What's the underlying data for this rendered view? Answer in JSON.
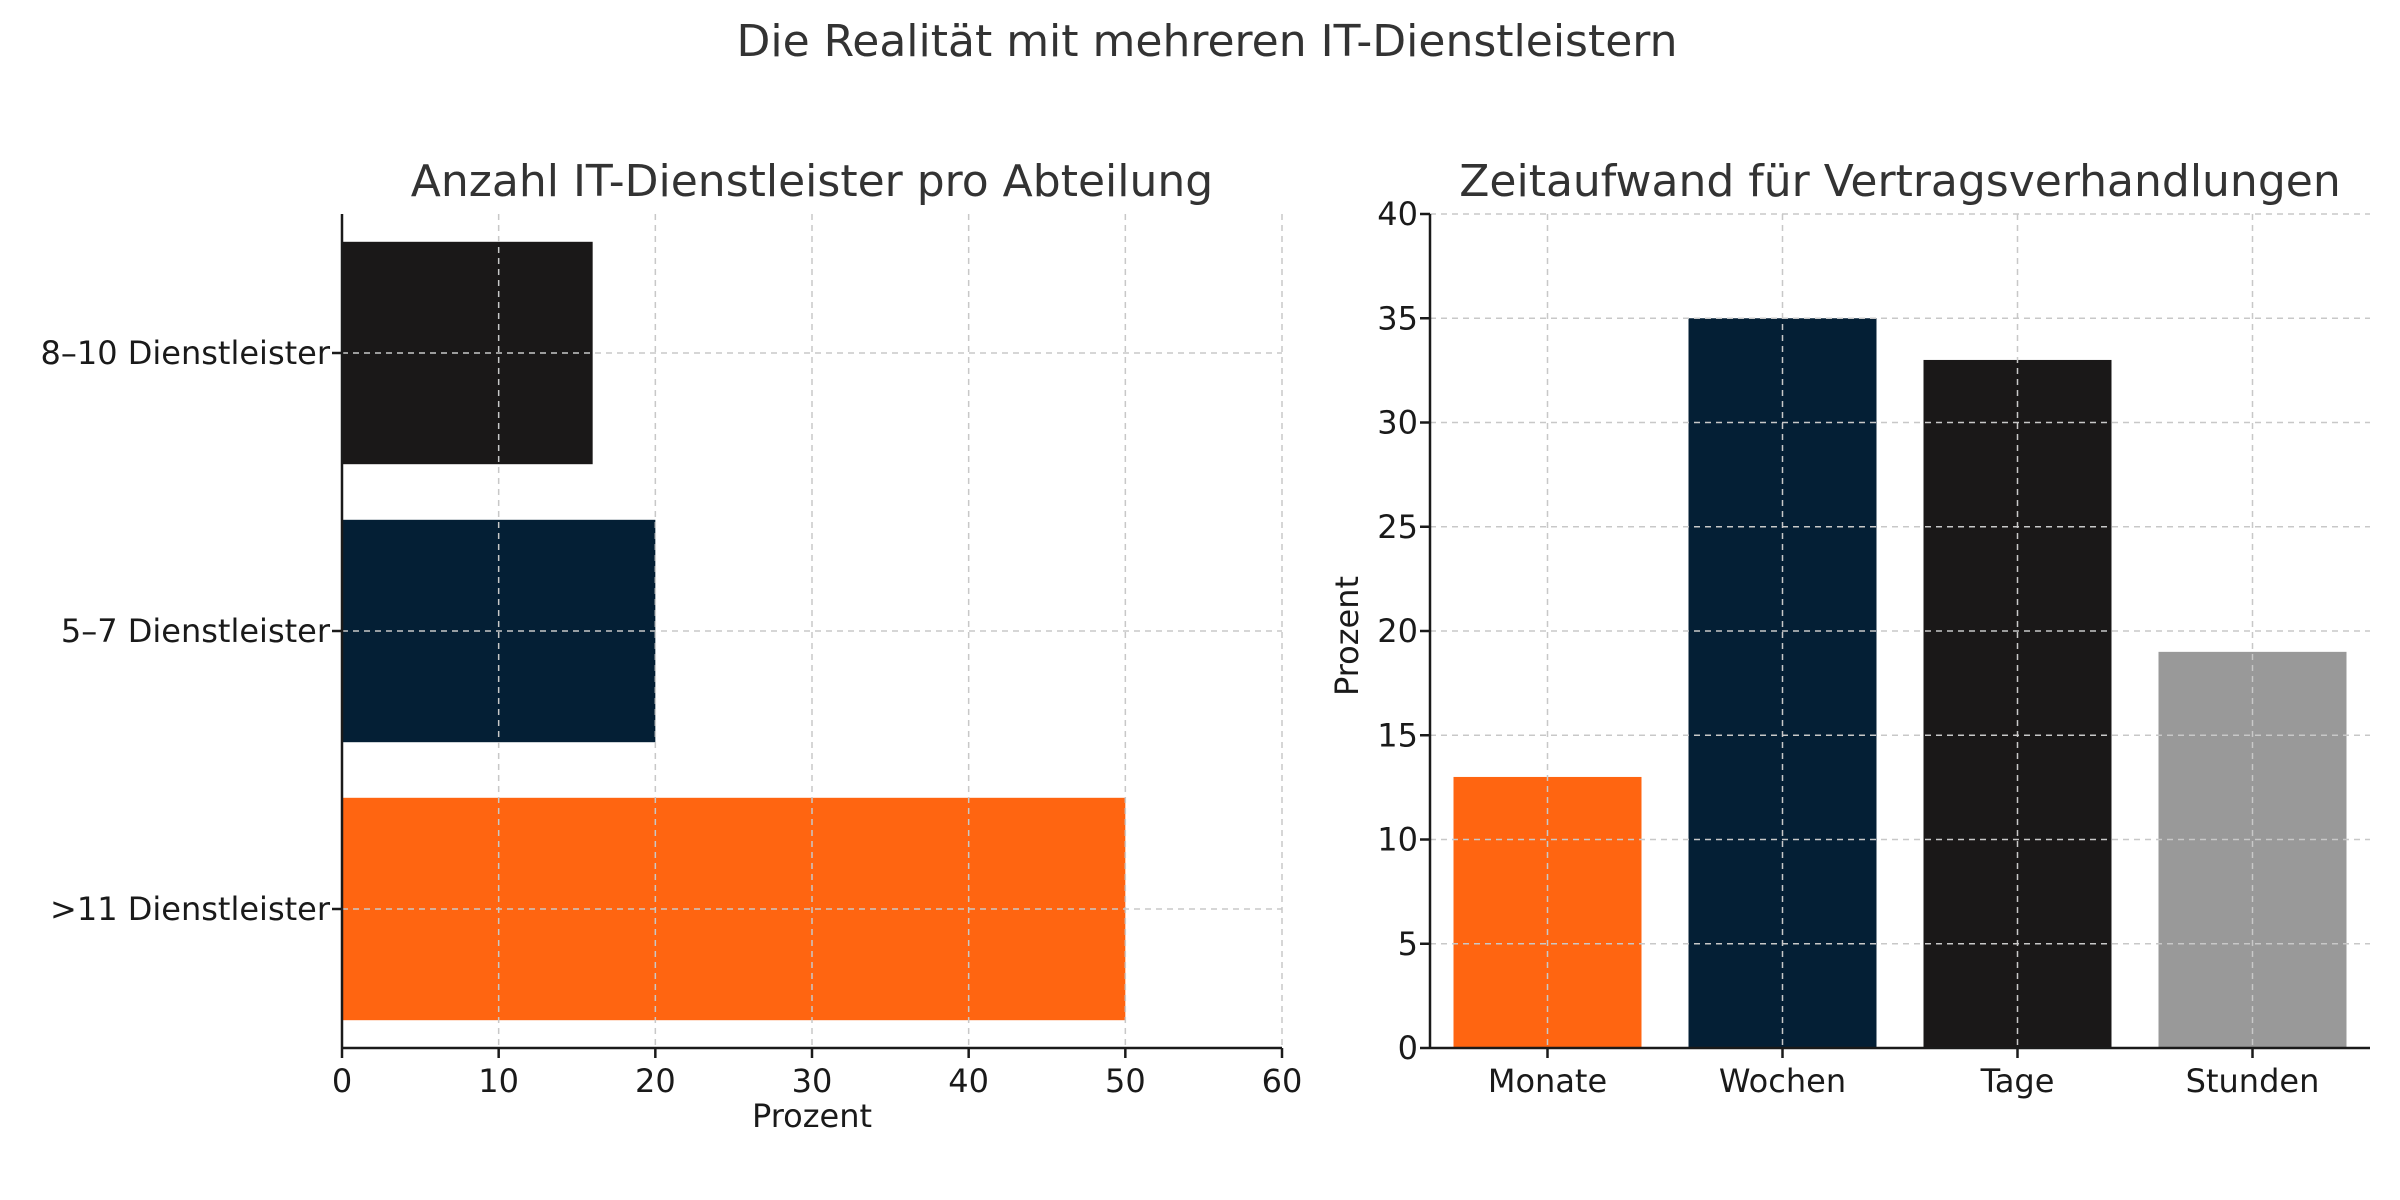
{
  "figure": {
    "suptitle": "Die Realität mit mehreren IT-Dienstleistern"
  },
  "chart_data": [
    {
      "type": "bar",
      "orientation": "horizontal",
      "title": "Anzahl IT-Dienstleister pro Abteilung",
      "xlabel": "Prozent",
      "ylabel": "",
      "categories": [
        "8–10 Dienstleister",
        "5–7 Dienstleister",
        ">11 Dienstleister"
      ],
      "values": [
        16,
        20,
        50
      ],
      "colors": [
        "#1a1818",
        "#041f35",
        "#ff6511"
      ],
      "xlim": [
        0,
        60
      ],
      "xticks": [
        0,
        10,
        20,
        30,
        40,
        50,
        60
      ],
      "grid": true
    },
    {
      "type": "bar",
      "orientation": "vertical",
      "title": "Zeitaufwand für Vertragsverhandlungen",
      "xlabel": "",
      "ylabel": "Prozent",
      "categories": [
        "Monate",
        "Wochen",
        "Tage",
        "Stunden"
      ],
      "values": [
        13,
        35,
        33,
        19
      ],
      "colors": [
        "#ff6511",
        "#041f35",
        "#1a1818",
        "#999999"
      ],
      "ylim": [
        0,
        40
      ],
      "yticks": [
        0,
        5,
        10,
        15,
        20,
        25,
        30,
        35,
        40
      ],
      "grid": true
    }
  ]
}
